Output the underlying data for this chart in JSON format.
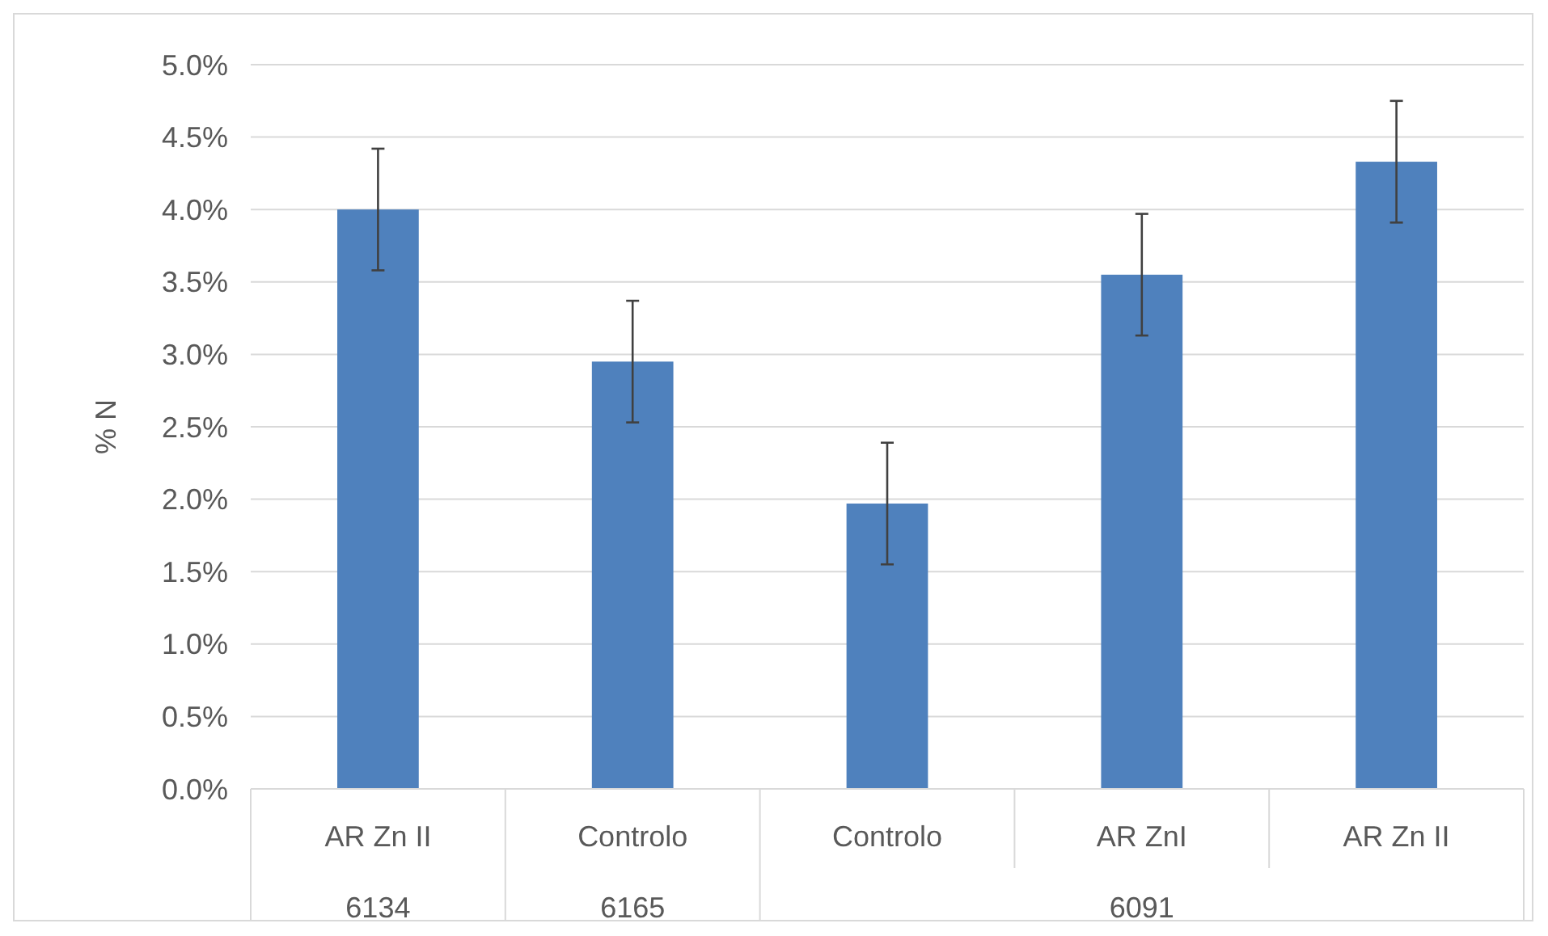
{
  "chart_data": {
    "type": "bar",
    "ylabel": "% N",
    "categories": [
      "AR Zn II",
      "Controlo",
      "Controlo",
      "AR ZnI",
      "AR Zn II"
    ],
    "series": [
      {
        "color": "#4f81bd",
        "values": [
          4.0,
          2.95,
          1.97,
          3.55,
          4.33
        ],
        "errors": [
          0.42,
          0.42,
          0.42,
          0.42,
          0.42
        ]
      }
    ],
    "ylim": [
      0,
      5
    ],
    "yticks": [
      {
        "value": 0,
        "label": "0.0%"
      },
      {
        "value": 0.5,
        "label": "0.5%"
      },
      {
        "value": 1,
        "label": "1.0%"
      },
      {
        "value": 1.5,
        "label": "1.5%"
      },
      {
        "value": 2,
        "label": "2.0%"
      },
      {
        "value": 2.5,
        "label": "2.5%"
      },
      {
        "value": 3,
        "label": "3.0%"
      },
      {
        "value": 3.5,
        "label": "3.5%"
      },
      {
        "value": 4,
        "label": "4.0%"
      },
      {
        "value": 4.5,
        "label": "4.5%"
      },
      {
        "value": 5,
        "label": "5.0%"
      }
    ],
    "grid": "y",
    "annotations": [
      "6134",
      "6165",
      "6091"
    ]
  }
}
